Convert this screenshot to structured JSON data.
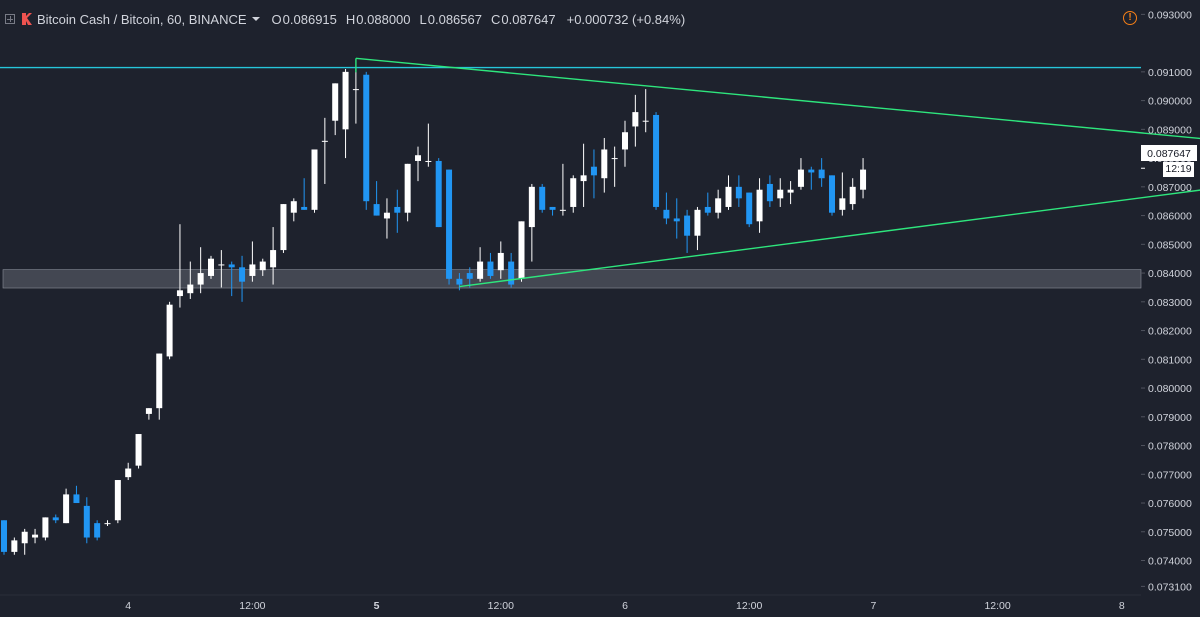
{
  "header": {
    "symbol": "Bitcoin Cash / Bitcoin, 60, BINANCE",
    "open_key": "O",
    "open": "0.086915",
    "high_key": "H",
    "high": "0.088000",
    "low_key": "L",
    "low": "0.086567",
    "close_key": "C",
    "close": "0.087647",
    "change": "+0.000732 (+0.84%)"
  },
  "warning_icon": "!",
  "last_price_label": "0.087647",
  "countdown_label": "12:19",
  "colors": {
    "background": "#1e222d",
    "up_candle": "#ffffff",
    "down_candle": "#2196f3",
    "resistance_line": "#26c6da",
    "triangle_lines": "#2ee67d",
    "support_zone": "#4a4e59"
  },
  "chart_data": {
    "type": "candlestick",
    "symbol": "BCH/BTC",
    "interval": "60",
    "exchange": "BINANCE",
    "y_ticks": [
      "0.093000",
      "0.091000",
      "0.090000",
      "0.089000",
      "0.088000",
      "0.087000",
      "0.086000",
      "0.085000",
      "0.084000",
      "0.083000",
      "0.082000",
      "0.081000",
      "0.080000",
      "0.079000",
      "0.078000",
      "0.077000",
      "0.076000",
      "0.075000",
      "0.074000",
      "0.073100"
    ],
    "ylim": [
      0.0728,
      0.0935
    ],
    "x_ticks": [
      "4",
      "12:00",
      "5",
      "12:00",
      "6",
      "12:00",
      "7",
      "12:00",
      "8"
    ],
    "x_tick_bold": [
      false,
      false,
      true,
      false,
      false,
      false,
      false,
      false,
      false
    ],
    "x_tick_index": [
      12,
      24,
      36,
      48,
      60,
      72,
      84,
      96,
      108
    ],
    "candles": [
      {
        "o": 0.0754,
        "h": 0.0754,
        "l": 0.0742,
        "c": 0.0743
      },
      {
        "o": 0.0743,
        "h": 0.0748,
        "l": 0.0742,
        "c": 0.0747
      },
      {
        "o": 0.0746,
        "h": 0.0751,
        "l": 0.0742,
        "c": 0.075
      },
      {
        "o": 0.0748,
        "h": 0.0751,
        "l": 0.0746,
        "c": 0.0749
      },
      {
        "o": 0.0748,
        "h": 0.0755,
        "l": 0.0747,
        "c": 0.0755
      },
      {
        "o": 0.0755,
        "h": 0.0756,
        "l": 0.0753,
        "c": 0.0754
      },
      {
        "o": 0.0753,
        "h": 0.0765,
        "l": 0.0753,
        "c": 0.0763
      },
      {
        "o": 0.0763,
        "h": 0.0766,
        "l": 0.076,
        "c": 0.076
      },
      {
        "o": 0.0759,
        "h": 0.0762,
        "l": 0.0746,
        "c": 0.0748
      },
      {
        "o": 0.0753,
        "h": 0.0754,
        "l": 0.0747,
        "c": 0.0748
      },
      {
        "o": 0.0753,
        "h": 0.0754,
        "l": 0.0752,
        "c": 0.0753
      },
      {
        "o": 0.0754,
        "h": 0.0768,
        "l": 0.0753,
        "c": 0.0768
      },
      {
        "o": 0.0769,
        "h": 0.0774,
        "l": 0.0768,
        "c": 0.0772
      },
      {
        "o": 0.0773,
        "h": 0.0784,
        "l": 0.0772,
        "c": 0.0784
      },
      {
        "o": 0.0791,
        "h": 0.0793,
        "l": 0.0789,
        "c": 0.0793
      },
      {
        "o": 0.0793,
        "h": 0.0812,
        "l": 0.0789,
        "c": 0.0812
      },
      {
        "o": 0.0811,
        "h": 0.083,
        "l": 0.081,
        "c": 0.0829
      },
      {
        "o": 0.0832,
        "h": 0.0857,
        "l": 0.0828,
        "c": 0.0834
      },
      {
        "o": 0.0833,
        "h": 0.0844,
        "l": 0.0831,
        "c": 0.0836
      },
      {
        "o": 0.0836,
        "h": 0.0849,
        "l": 0.0833,
        "c": 0.084
      },
      {
        "o": 0.0839,
        "h": 0.0846,
        "l": 0.0838,
        "c": 0.0845
      },
      {
        "o": 0.0843,
        "h": 0.0848,
        "l": 0.0835,
        "c": 0.0843
      },
      {
        "o": 0.0843,
        "h": 0.0844,
        "l": 0.0832,
        "c": 0.0842
      },
      {
        "o": 0.0842,
        "h": 0.0846,
        "l": 0.083,
        "c": 0.0837
      },
      {
        "o": 0.0839,
        "h": 0.0851,
        "l": 0.0837,
        "c": 0.0843
      },
      {
        "o": 0.0841,
        "h": 0.0845,
        "l": 0.0839,
        "c": 0.0844
      },
      {
        "o": 0.0842,
        "h": 0.0856,
        "l": 0.0836,
        "c": 0.0848
      },
      {
        "o": 0.0848,
        "h": 0.0864,
        "l": 0.0847,
        "c": 0.0864
      },
      {
        "o": 0.0861,
        "h": 0.0866,
        "l": 0.0858,
        "c": 0.0865
      },
      {
        "o": 0.0863,
        "h": 0.0873,
        "l": 0.0862,
        "c": 0.0862
      },
      {
        "o": 0.0862,
        "h": 0.0883,
        "l": 0.0861,
        "c": 0.0883
      },
      {
        "o": 0.0886,
        "h": 0.0894,
        "l": 0.0871,
        "c": 0.0886
      },
      {
        "o": 0.0893,
        "h": 0.0906,
        "l": 0.0888,
        "c": 0.0906
      },
      {
        "o": 0.089,
        "h": 0.0911,
        "l": 0.088,
        "c": 0.091
      },
      {
        "o": 0.0904,
        "h": 0.0911,
        "l": 0.0892,
        "c": 0.0904
      },
      {
        "o": 0.0909,
        "h": 0.091,
        "l": 0.0862,
        "c": 0.0865
      },
      {
        "o": 0.0864,
        "h": 0.0872,
        "l": 0.086,
        "c": 0.086
      },
      {
        "o": 0.0859,
        "h": 0.0866,
        "l": 0.0852,
        "c": 0.0861
      },
      {
        "o": 0.0863,
        "h": 0.0869,
        "l": 0.0854,
        "c": 0.0861
      },
      {
        "o": 0.0861,
        "h": 0.0878,
        "l": 0.0858,
        "c": 0.0878
      },
      {
        "o": 0.0879,
        "h": 0.0884,
        "l": 0.0872,
        "c": 0.0881
      },
      {
        "o": 0.0879,
        "h": 0.0892,
        "l": 0.0877,
        "c": 0.0879
      },
      {
        "o": 0.0879,
        "h": 0.088,
        "l": 0.0856,
        "c": 0.0856
      },
      {
        "o": 0.0876,
        "h": 0.0876,
        "l": 0.0836,
        "c": 0.0838
      },
      {
        "o": 0.0838,
        "h": 0.084,
        "l": 0.0834,
        "c": 0.0836
      },
      {
        "o": 0.084,
        "h": 0.0842,
        "l": 0.0835,
        "c": 0.0838
      },
      {
        "o": 0.0838,
        "h": 0.0849,
        "l": 0.0837,
        "c": 0.0844
      },
      {
        "o": 0.0844,
        "h": 0.0847,
        "l": 0.0838,
        "c": 0.0839
      },
      {
        "o": 0.0841,
        "h": 0.0851,
        "l": 0.0838,
        "c": 0.0847
      },
      {
        "o": 0.0844,
        "h": 0.0847,
        "l": 0.0835,
        "c": 0.0836
      },
      {
        "o": 0.0838,
        "h": 0.0858,
        "l": 0.0837,
        "c": 0.0858
      },
      {
        "o": 0.0856,
        "h": 0.0871,
        "l": 0.0844,
        "c": 0.087
      },
      {
        "o": 0.087,
        "h": 0.0871,
        "l": 0.0861,
        "c": 0.0862
      },
      {
        "o": 0.0863,
        "h": 0.0863,
        "l": 0.086,
        "c": 0.0862
      },
      {
        "o": 0.0862,
        "h": 0.0878,
        "l": 0.086,
        "c": 0.0862
      },
      {
        "o": 0.0863,
        "h": 0.0874,
        "l": 0.0861,
        "c": 0.0873
      },
      {
        "o": 0.0872,
        "h": 0.0885,
        "l": 0.0863,
        "c": 0.0874
      },
      {
        "o": 0.0877,
        "h": 0.0883,
        "l": 0.0866,
        "c": 0.0874
      },
      {
        "o": 0.0873,
        "h": 0.0887,
        "l": 0.0868,
        "c": 0.0883
      },
      {
        "o": 0.088,
        "h": 0.0884,
        "l": 0.087,
        "c": 0.088
      },
      {
        "o": 0.0883,
        "h": 0.0893,
        "l": 0.0877,
        "c": 0.0889
      },
      {
        "o": 0.0891,
        "h": 0.0902,
        "l": 0.0884,
        "c": 0.0896
      },
      {
        "o": 0.0893,
        "h": 0.0904,
        "l": 0.0889,
        "c": 0.0893
      },
      {
        "o": 0.0895,
        "h": 0.0896,
        "l": 0.0862,
        "c": 0.0863
      },
      {
        "o": 0.0862,
        "h": 0.0868,
        "l": 0.0857,
        "c": 0.0859
      },
      {
        "o": 0.0859,
        "h": 0.0866,
        "l": 0.0852,
        "c": 0.0858
      },
      {
        "o": 0.086,
        "h": 0.0862,
        "l": 0.0847,
        "c": 0.0853
      },
      {
        "o": 0.0853,
        "h": 0.0863,
        "l": 0.0848,
        "c": 0.0862
      },
      {
        "o": 0.0863,
        "h": 0.0868,
        "l": 0.086,
        "c": 0.0861
      },
      {
        "o": 0.0861,
        "h": 0.0869,
        "l": 0.0859,
        "c": 0.0866
      },
      {
        "o": 0.0863,
        "h": 0.0874,
        "l": 0.0862,
        "c": 0.087
      },
      {
        "o": 0.087,
        "h": 0.0874,
        "l": 0.0863,
        "c": 0.0866
      },
      {
        "o": 0.0868,
        "h": 0.0868,
        "l": 0.0856,
        "c": 0.0857
      },
      {
        "o": 0.0858,
        "h": 0.0873,
        "l": 0.0854,
        "c": 0.0869
      },
      {
        "o": 0.0871,
        "h": 0.0874,
        "l": 0.0863,
        "c": 0.0865
      },
      {
        "o": 0.0866,
        "h": 0.0873,
        "l": 0.0863,
        "c": 0.0869
      },
      {
        "o": 0.0868,
        "h": 0.0872,
        "l": 0.0864,
        "c": 0.0869
      },
      {
        "o": 0.087,
        "h": 0.088,
        "l": 0.0869,
        "c": 0.0876
      },
      {
        "o": 0.0876,
        "h": 0.0877,
        "l": 0.0869,
        "c": 0.0875
      },
      {
        "o": 0.0876,
        "h": 0.088,
        "l": 0.087,
        "c": 0.0873
      },
      {
        "o": 0.0874,
        "h": 0.0874,
        "l": 0.086,
        "c": 0.0861
      },
      {
        "o": 0.0862,
        "h": 0.0875,
        "l": 0.086,
        "c": 0.0866
      },
      {
        "o": 0.0864,
        "h": 0.0873,
        "l": 0.0862,
        "c": 0.087
      },
      {
        "o": 0.0869,
        "h": 0.088,
        "l": 0.0866,
        "c": 0.0876
      }
    ],
    "drawings": {
      "resistance_level": 0.09115,
      "support_zone": [
        0.08348,
        0.08412
      ],
      "triangle_upper": [
        {
          "index": 34,
          "price": 0.09147
        },
        {
          "index": 118,
          "price": 0.0886
        }
      ],
      "triangle_lower": [
        {
          "index": 44,
          "price": 0.08353
        },
        {
          "index": 118,
          "price": 0.087
        }
      ]
    }
  }
}
